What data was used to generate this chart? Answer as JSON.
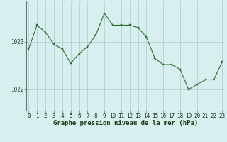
{
  "x": [
    0,
    1,
    2,
    3,
    4,
    5,
    6,
    7,
    8,
    9,
    10,
    11,
    12,
    13,
    14,
    15,
    16,
    17,
    18,
    19,
    20,
    21,
    22,
    23
  ],
  "y": [
    1022.85,
    1023.35,
    1023.2,
    1022.95,
    1022.85,
    1022.55,
    1022.75,
    1022.9,
    1023.15,
    1023.6,
    1023.35,
    1023.35,
    1023.35,
    1023.3,
    1023.1,
    1022.65,
    1022.52,
    1022.52,
    1022.42,
    1022.0,
    1022.1,
    1022.2,
    1022.2,
    1022.58
  ],
  "line_color": "#2d6a2d",
  "marker_color": "#2d6a2d",
  "bg_color": "#d8eff0",
  "grid_color": "#aacccc",
  "border_color": "#888888",
  "ytick_labels": [
    "1022",
    "1023"
  ],
  "ytick_values": [
    1022.0,
    1023.0
  ],
  "xlabel": "Graphe pression niveau de la mer (hPa)",
  "ylim_bottom": 1021.55,
  "ylim_top": 1023.85,
  "xlim_left": -0.3,
  "xlim_right": 23.3,
  "xlabel_fontsize": 6.5,
  "tick_fontsize": 5.5
}
